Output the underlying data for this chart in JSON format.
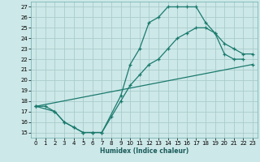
{
  "title": "",
  "xlabel": "Humidex (Indice chaleur)",
  "background_color": "#cde8e8",
  "grid_color": "#aacccc",
  "line_color": "#1a7a6e",
  "xlim": [
    -0.5,
    23.5
  ],
  "ylim": [
    14.5,
    27.5
  ],
  "xticks": [
    0,
    1,
    2,
    3,
    4,
    5,
    6,
    7,
    8,
    9,
    10,
    11,
    12,
    13,
    14,
    15,
    16,
    17,
    18,
    19,
    20,
    21,
    22,
    23
  ],
  "yticks": [
    15,
    16,
    17,
    18,
    19,
    20,
    21,
    22,
    23,
    24,
    25,
    26,
    27
  ],
  "line1_x": [
    0,
    1,
    2,
    3,
    4,
    5,
    6,
    7,
    9,
    10,
    11,
    12,
    13,
    14,
    15,
    16,
    17,
    18,
    19,
    20,
    21,
    22
  ],
  "line1_y": [
    17.5,
    17.5,
    17.0,
    16.0,
    15.5,
    15.0,
    15.0,
    15.0,
    18.5,
    21.5,
    23.0,
    25.5,
    26.0,
    27.0,
    27.0,
    27.0,
    27.0,
    25.5,
    24.5,
    22.5,
    22.0,
    22.0
  ],
  "line2_x": [
    0,
    2,
    3,
    4,
    5,
    6,
    7,
    8,
    9,
    10,
    11,
    12,
    13,
    14,
    15,
    16,
    17,
    18,
    19,
    20,
    21,
    22,
    23
  ],
  "line2_y": [
    17.5,
    17.0,
    16.0,
    15.5,
    15.0,
    15.0,
    15.0,
    16.5,
    18.0,
    19.5,
    20.5,
    21.5,
    22.0,
    23.0,
    24.0,
    24.5,
    25.0,
    25.0,
    24.5,
    23.5,
    23.0,
    22.5,
    22.5
  ],
  "line3_x": [
    0,
    23
  ],
  "line3_y": [
    17.5,
    21.5
  ]
}
